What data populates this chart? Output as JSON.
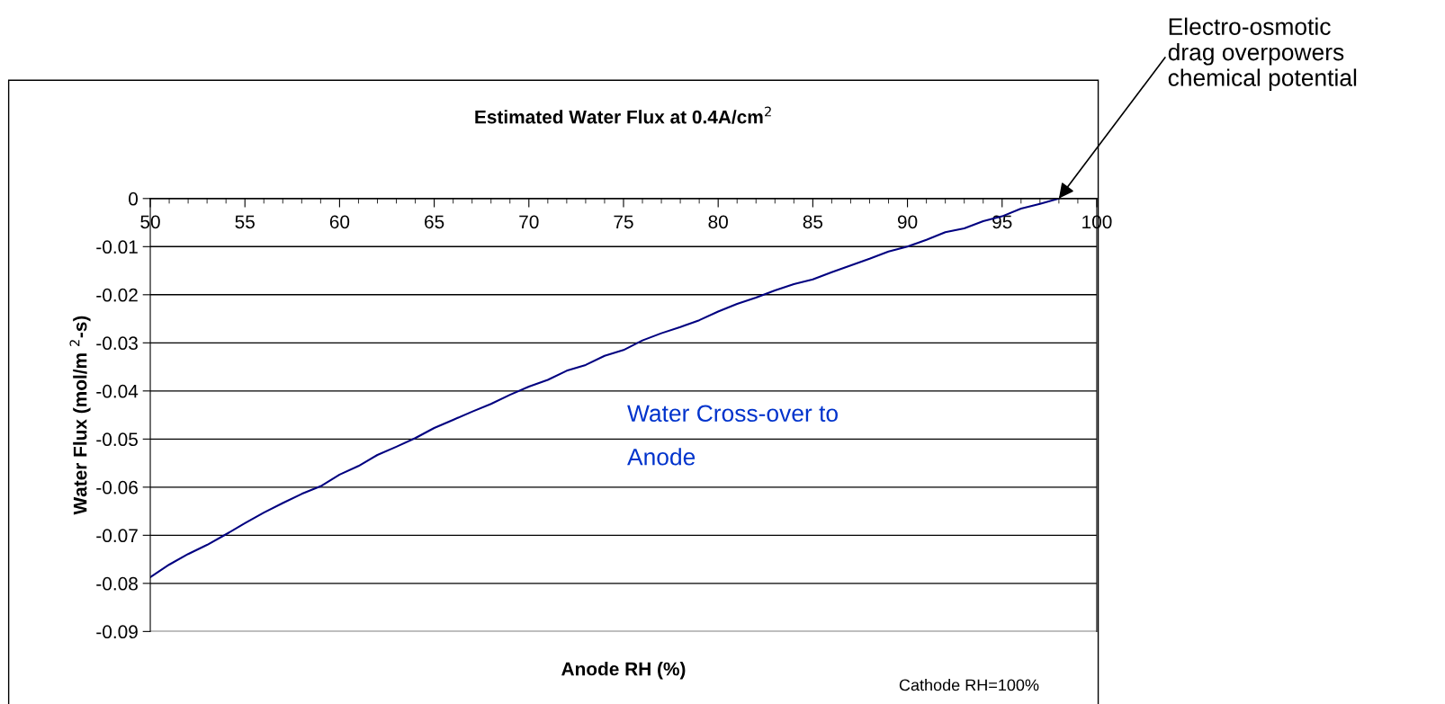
{
  "chart_data": {
    "type": "line",
    "title": "Estimated Water Flux at 0.4A/cm$^{2}$",
    "xlabel": "Anode RH (%)",
    "ylabel": "Water Flux (mol/m $^{2}$-s)",
    "x": [
      50,
      51,
      52,
      53,
      54,
      55,
      56,
      57,
      58,
      59,
      60,
      61,
      62,
      63,
      64,
      65,
      66,
      67,
      68,
      69,
      70,
      71,
      72,
      73,
      74,
      75,
      76,
      77,
      78,
      79,
      80,
      81,
      82,
      83,
      84,
      85,
      86,
      87,
      88,
      89,
      90,
      91,
      92,
      93,
      94,
      95,
      96,
      97,
      98
    ],
    "series": [
      {
        "color": "#000080",
        "values": [
          -0.0787,
          -0.0761,
          -0.0739,
          -0.072,
          -0.0698,
          -0.0675,
          -0.0653,
          -0.0633,
          -0.0614,
          -0.0598,
          -0.0574,
          -0.0556,
          -0.0533,
          -0.0516,
          -0.0498,
          -0.0477,
          -0.046,
          -0.0443,
          -0.0427,
          -0.0408,
          -0.0391,
          -0.0377,
          -0.0358,
          -0.0346,
          -0.0327,
          -0.0315,
          -0.0295,
          -0.028,
          -0.0267,
          -0.0253,
          -0.0235,
          -0.0219,
          -0.0206,
          -0.0191,
          -0.0178,
          -0.0168,
          -0.0153,
          -0.0139,
          -0.0125,
          -0.011,
          -0.01,
          -0.0086,
          -0.007,
          -0.0062,
          -0.0047,
          -0.0037,
          -0.0021,
          -0.0011,
          0
        ]
      }
    ],
    "xlim": [
      50,
      100
    ],
    "xticks": [
      50,
      55,
      60,
      65,
      70,
      75,
      80,
      85,
      90,
      95,
      100
    ],
    "ylim": [
      -0.09,
      0
    ],
    "yticks": [
      -0.09,
      -0.08,
      -0.07,
      -0.06,
      -0.05,
      -0.04,
      -0.03,
      -0.02,
      -0.01,
      0
    ],
    "grid": "y",
    "marker": "none",
    "line_style": "solid",
    "legend": false,
    "annotations": [
      {
        "text": "Electro-osmotic\ndrag overpowers\nchemical potential",
        "x": 98,
        "y": 0
      },
      "Water Cross-over to\nAnode",
      "Cathode RH=100%"
    ]
  }
}
